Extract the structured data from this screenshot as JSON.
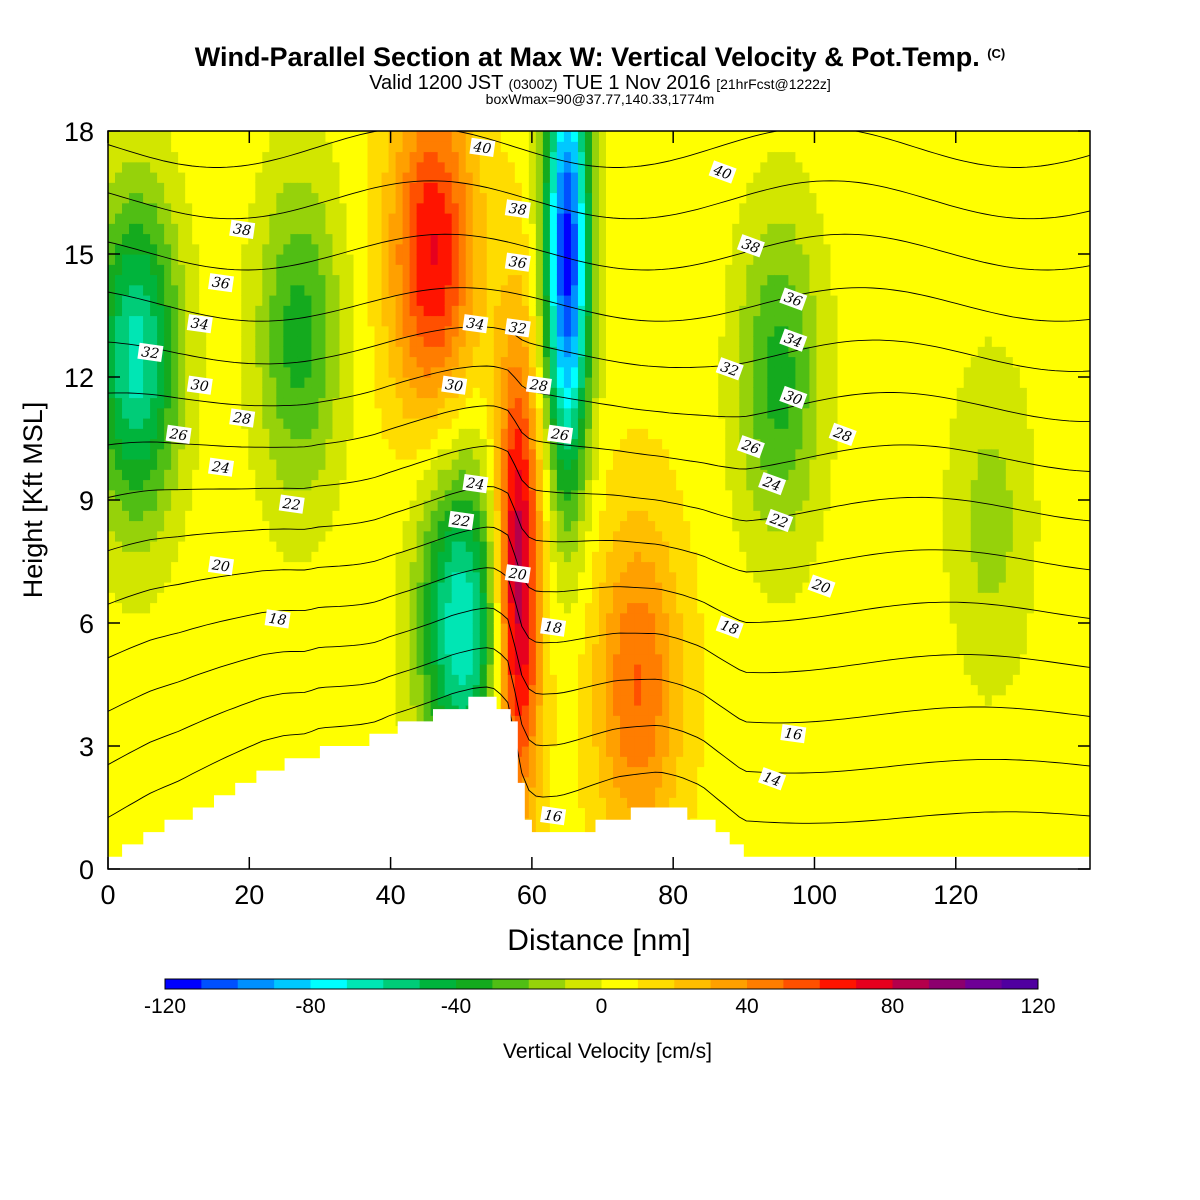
{
  "header": {
    "title": "Wind-Parallel Section at Max W: Vertical Velocity & Pot.Temp.",
    "title_unit": "(C)",
    "valid_prefix": "Valid 1200 JST",
    "valid_utc": "(0300Z)",
    "valid_date": "TUE 1 Nov 2016",
    "forecast": "[21hrFcst@1222z]",
    "box_info": "boxWmax=90@37.77,140.33,1774m"
  },
  "chart_data": {
    "type": "heatmap",
    "title": "Wind-Parallel Section at Max W: Vertical Velocity & Pot.Temp.",
    "xlabel": "Distance [nm]",
    "ylabel": "Height [Kft MSL]",
    "xlim": [
      0,
      139
    ],
    "ylim": [
      0,
      18
    ],
    "xticks": [
      "0",
      "20",
      "40",
      "60",
      "80",
      "100",
      "120"
    ],
    "yticks": [
      "0",
      "3",
      "6",
      "9",
      "12",
      "15",
      "18"
    ],
    "grid": false,
    "colorbar": {
      "label": "Vertical Velocity [cm/s]",
      "min": -120,
      "max": 120,
      "step": 10,
      "tick_labels": [
        "-120",
        "-80",
        "-40",
        "0",
        "40",
        "80",
        "120"
      ],
      "colors": [
        "#0000ff",
        "#0050ff",
        "#0090ff",
        "#00c8ff",
        "#00ffff",
        "#00e6b4",
        "#00cc78",
        "#00b43c",
        "#14aa1e",
        "#50be14",
        "#96d20a",
        "#d2e600",
        "#ffff00",
        "#ffdc00",
        "#ffbe00",
        "#ffa000",
        "#ff7d00",
        "#ff5000",
        "#ff1400",
        "#e6001e",
        "#b4004b",
        "#8c006e",
        "#6e0096",
        "#5000a0"
      ]
    },
    "vertical_velocity_features": [
      {
        "x": 4,
        "y": 12.5,
        "w": -70,
        "note": "downdraft band along left edge"
      },
      {
        "x": 27,
        "y": 13,
        "w": -40
      },
      {
        "x": 46,
        "y": 15,
        "w": 65,
        "note": "updraft column aloft"
      },
      {
        "x": 50,
        "y": 6,
        "w": -75,
        "note": "downdraft above west ridge"
      },
      {
        "x": 58,
        "y": 7,
        "w": 90,
        "note": "maximum updraft (boxWmax=90)"
      },
      {
        "x": 65,
        "y": 15,
        "w": -120,
        "note": "strong downdraft core"
      },
      {
        "x": 75,
        "y": 4.5,
        "w": 45
      },
      {
        "x": 95,
        "y": 12,
        "w": -40
      },
      {
        "x": 125,
        "y": 8.5,
        "w": -20
      }
    ],
    "terrain_profile": {
      "x": [
        0,
        3,
        6,
        10,
        13,
        16,
        19,
        22,
        25,
        28,
        30,
        33,
        36,
        38,
        40,
        43,
        46,
        49,
        52,
        54,
        55,
        57,
        58,
        59,
        60,
        61,
        62,
        64,
        66,
        69,
        72,
        75,
        78,
        81,
        84,
        86,
        88,
        90,
        139
      ],
      "y": [
        0.3,
        0.6,
        0.9,
        1.2,
        1.5,
        1.8,
        2.1,
        2.4,
        2.6,
        2.7,
        2.9,
        3.0,
        3.1,
        3.2,
        3.4,
        3.6,
        3.8,
        4.0,
        4.1,
        4.1,
        4.0,
        3.5,
        2.0,
        1.2,
        0.9,
        0.8,
        0.8,
        0.8,
        0.9,
        1.1,
        1.3,
        1.4,
        1.5,
        1.4,
        1.2,
        0.9,
        0.6,
        0.3,
        0.3
      ]
    },
    "potential_temperature_contours": [
      14,
      16,
      18,
      20,
      22,
      24,
      26,
      28,
      30,
      32,
      34,
      36,
      38,
      40
    ],
    "contour_labels": [
      {
        "text": "40",
        "x": 53,
        "y": 17.6
      },
      {
        "text": "40",
        "x": 87,
        "y": 17.0
      },
      {
        "text": "38",
        "x": 19,
        "y": 15.6
      },
      {
        "text": "38",
        "x": 58,
        "y": 16.1
      },
      {
        "text": "38",
        "x": 91,
        "y": 15.2
      },
      {
        "text": "36",
        "x": 16,
        "y": 14.3
      },
      {
        "text": "36",
        "x": 58,
        "y": 14.8
      },
      {
        "text": "36",
        "x": 97,
        "y": 13.9
      },
      {
        "text": "34",
        "x": 13,
        "y": 13.3
      },
      {
        "text": "34",
        "x": 52,
        "y": 13.3
      },
      {
        "text": "34",
        "x": 97,
        "y": 12.9
      },
      {
        "text": "32",
        "x": 6,
        "y": 12.6
      },
      {
        "text": "32",
        "x": 58,
        "y": 13.2
      },
      {
        "text": "32",
        "x": 88,
        "y": 12.2
      },
      {
        "text": "30",
        "x": 13,
        "y": 11.8
      },
      {
        "text": "30",
        "x": 49,
        "y": 11.8
      },
      {
        "text": "30",
        "x": 97,
        "y": 11.5
      },
      {
        "text": "28",
        "x": 19,
        "y": 11.0
      },
      {
        "text": "28",
        "x": 61,
        "y": 11.8
      },
      {
        "text": "28",
        "x": 104,
        "y": 10.6
      },
      {
        "text": "26",
        "x": 10,
        "y": 10.6
      },
      {
        "text": "26",
        "x": 64,
        "y": 10.6
      },
      {
        "text": "26",
        "x": 91,
        "y": 10.3
      },
      {
        "text": "24",
        "x": 16,
        "y": 9.8
      },
      {
        "text": "24",
        "x": 52,
        "y": 9.4
      },
      {
        "text": "24",
        "x": 94,
        "y": 9.4
      },
      {
        "text": "22",
        "x": 26,
        "y": 8.9
      },
      {
        "text": "22",
        "x": 50,
        "y": 8.5
      },
      {
        "text": "22",
        "x": 95,
        "y": 8.5
      },
      {
        "text": "20",
        "x": 16,
        "y": 7.4
      },
      {
        "text": "20",
        "x": 58,
        "y": 7.2
      },
      {
        "text": "20",
        "x": 101,
        "y": 6.9
      },
      {
        "text": "18",
        "x": 24,
        "y": 6.1
      },
      {
        "text": "18",
        "x": 63,
        "y": 5.9
      },
      {
        "text": "18",
        "x": 88,
        "y": 5.9
      },
      {
        "text": "16",
        "x": 97,
        "y": 3.3
      },
      {
        "text": "16",
        "x": 63,
        "y": 1.3
      },
      {
        "text": "14",
        "x": 94,
        "y": 2.2
      }
    ]
  }
}
